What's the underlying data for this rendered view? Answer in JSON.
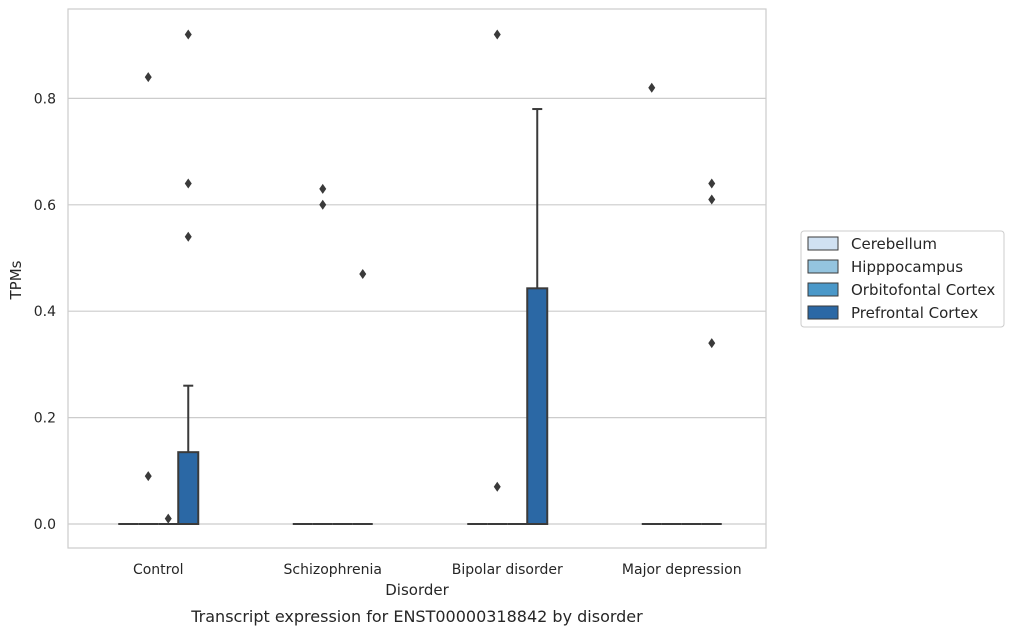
{
  "chart_data": {
    "type": "box",
    "title": "",
    "caption": "Transcript expression for ENST00000318842 by disorder",
    "xlabel": "Disorder",
    "ylabel": "TPMs",
    "ylim": [
      -0.045,
      0.97
    ],
    "yticks": [
      0.0,
      0.2,
      0.4,
      0.6,
      0.8
    ],
    "ytick_labels": [
      "0.0",
      "0.2",
      "0.4",
      "0.6",
      "0.8"
    ],
    "grid": "horizontal",
    "legend_position": "right",
    "categories": [
      "Control",
      "Schizophrenia",
      "Bipolar disorder",
      "Major depression"
    ],
    "series": [
      {
        "name": "Cerebellum",
        "color": "#d0e1f2",
        "boxes": [
          {
            "q1": 0,
            "median": 0,
            "q3": 0,
            "whisker_low": 0,
            "whisker_high": 0,
            "outliers": []
          },
          {
            "q1": 0,
            "median": 0,
            "q3": 0,
            "whisker_low": 0,
            "whisker_high": 0,
            "outliers": []
          },
          {
            "q1": 0,
            "median": 0,
            "q3": 0,
            "whisker_low": 0,
            "whisker_high": 0,
            "outliers": []
          },
          {
            "q1": 0,
            "median": 0,
            "q3": 0,
            "whisker_low": 0,
            "whisker_high": 0,
            "outliers": [
              0.82
            ]
          }
        ]
      },
      {
        "name": "Hipppocampus",
        "color": "#94c4df",
        "boxes": [
          {
            "q1": 0,
            "median": 0,
            "q3": 0,
            "whisker_low": 0,
            "whisker_high": 0,
            "outliers": [
              0.84,
              0.09
            ]
          },
          {
            "q1": 0,
            "median": 0,
            "q3": 0,
            "whisker_low": 0,
            "whisker_high": 0,
            "outliers": [
              0.63,
              0.6
            ]
          },
          {
            "q1": 0,
            "median": 0,
            "q3": 0,
            "whisker_low": 0,
            "whisker_high": 0,
            "outliers": [
              0.07
            ]
          },
          {
            "q1": 0,
            "median": 0,
            "q3": 0,
            "whisker_low": 0,
            "whisker_high": 0,
            "outliers": []
          }
        ]
      },
      {
        "name": "Orbitofontal Cortex",
        "color": "#4a98c9",
        "boxes": [
          {
            "q1": 0,
            "median": 0,
            "q3": 0,
            "whisker_low": 0,
            "whisker_high": 0,
            "outliers": [
              0.01
            ]
          },
          {
            "q1": 0,
            "median": 0,
            "q3": 0,
            "whisker_low": 0,
            "whisker_high": 0,
            "outliers": []
          },
          {
            "q1": 0,
            "median": 0,
            "q3": 0,
            "whisker_low": 0,
            "whisker_high": 0,
            "outliers": []
          },
          {
            "q1": 0,
            "median": 0,
            "q3": 0,
            "whisker_low": 0,
            "whisker_high": 0,
            "outliers": []
          }
        ]
      },
      {
        "name": "Prefrontal Cortex",
        "color": "#2b68a5",
        "boxes": [
          {
            "q1": 0,
            "median": 0,
            "q3": 0.135,
            "whisker_low": 0,
            "whisker_high": 0.26,
            "outliers": [
              0.92,
              0.64,
              0.54
            ]
          },
          {
            "q1": 0,
            "median": 0,
            "q3": 0,
            "whisker_low": 0,
            "whisker_high": 0,
            "outliers": [
              0.47
            ]
          },
          {
            "q1": 0,
            "median": 0,
            "q3": 0.443,
            "whisker_low": 0,
            "whisker_high": 0.78,
            "outliers": []
          },
          {
            "q1": 0,
            "median": 0,
            "q3": 0,
            "whisker_low": 0,
            "whisker_high": 0,
            "outliers": [
              0.64,
              0.61,
              0.34
            ]
          }
        ]
      }
    ],
    "outlier_extra": [
      {
        "category": "Bipolar disorder",
        "series": "Hipppocampus",
        "value": 0.92
      }
    ]
  }
}
